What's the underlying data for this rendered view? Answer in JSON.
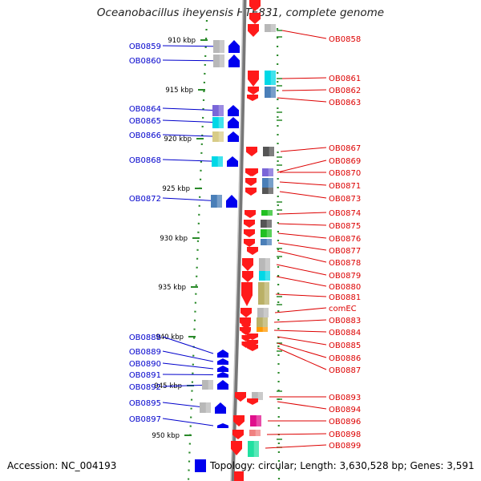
{
  "title": "Oceanobacillus iheyensis HTE831, complete genome",
  "footer": {
    "accession": "Accession: NC_004193",
    "topology": "Topology: circular; Length: 3,630,528 bp; Genes: 3,591"
  },
  "colors": {
    "forward_arrow": "#0000ee",
    "reverse_arrow": "#ff1a1a",
    "forward_label": "#0000cc",
    "reverse_label": "#dd0000",
    "backbone": "#888888",
    "tick": "#2a8a2a",
    "cog_gray": "#b8b8b8",
    "cog_cyan": "#00d8e6",
    "cog_purple": "#7a66d8",
    "cog_steel": "#4a7fb8",
    "cog_khaki": "#d8cc88",
    "cog_dark": "#555555",
    "cog_green": "#22c022",
    "cog_orange": "#ff9900",
    "cog_olive": "#bab066",
    "cog_magenta": "#e0108c",
    "cog_pink": "#f08080",
    "cog_aqua": "#20e0a0"
  },
  "scale_labels": [
    "910 kbp",
    "915 kbp",
    "920 kbp",
    "925 kbp",
    "930 kbp",
    "935 kbp",
    "940 kbp",
    "945 kbp",
    "950 kbp"
  ],
  "forward_genes": [
    "OB0859",
    "OB0860",
    "OB0864",
    "OB0865",
    "OB0866",
    "OB0868",
    "OB0872",
    "OB0888",
    "OB0889",
    "OB0890",
    "OB0891",
    "OB0892",
    "OB0895",
    "OB0897"
  ],
  "reverse_genes": [
    "OB0858",
    "OB0861",
    "OB0862",
    "OB0863",
    "OB0867",
    "OB0869",
    "OB0870",
    "OB0871",
    "OB0873",
    "OB0874",
    "OB0875",
    "OB0876",
    "OB0877",
    "OB0878",
    "OB0879",
    "OB0880",
    "OB0881",
    "comEC",
    "OB0883",
    "OB0884",
    "OB0885",
    "OB0886",
    "OB0887",
    "OB0893",
    "OB0894",
    "OB0896",
    "OB0898",
    "OB0899"
  ]
}
